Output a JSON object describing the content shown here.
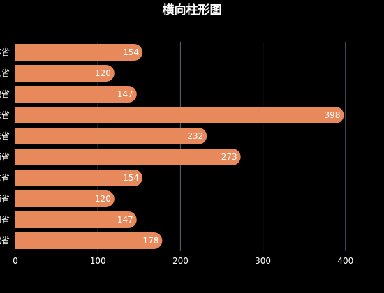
{
  "chart_data": {
    "type": "bar",
    "orientation": "horizontal",
    "title": "横向柱形图",
    "xlabel": "",
    "ylabel": "",
    "xlim": [
      0,
      400
    ],
    "x_ticks": [
      0,
      100,
      200,
      300,
      400
    ],
    "grid": "vertical",
    "categories": [
      "江苏省",
      "浙江省",
      "安徽省",
      "广东省",
      "山东省",
      "河南省",
      "湖北省",
      "湖南省",
      "四川省",
      "福建省"
    ],
    "values": [
      154,
      120,
      147,
      398,
      232,
      273,
      154,
      120,
      147,
      178
    ],
    "bar_color": "#E8895B",
    "grid_color": "#5f6378",
    "background": "#000000",
    "text_color": "#ffffff"
  }
}
